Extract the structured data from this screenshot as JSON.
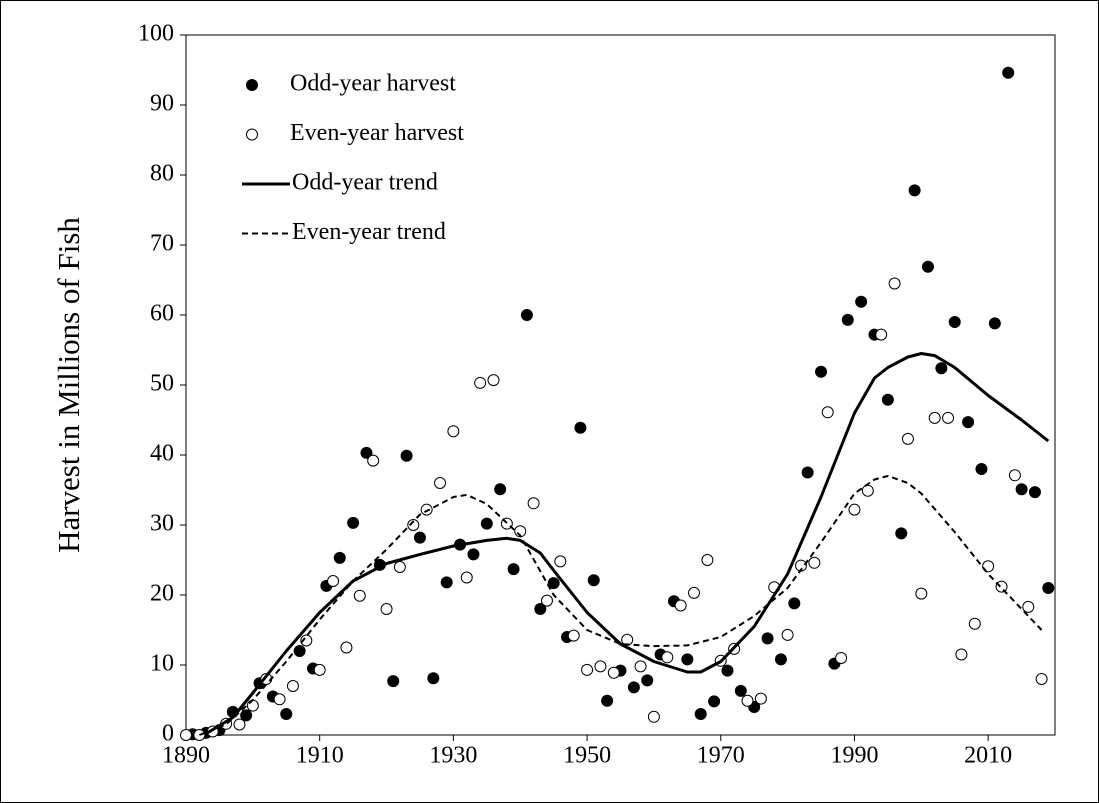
{
  "chart_data": {
    "type": "scatter",
    "y_label": "Harvest in Millions of Fish",
    "xlim": [
      1890,
      2020
    ],
    "xticks": [
      1890,
      1910,
      1930,
      1950,
      1970,
      1990,
      2010
    ],
    "ylim": [
      0,
      100
    ],
    "yticks": [
      0,
      10,
      20,
      30,
      40,
      50,
      60,
      70,
      80,
      90,
      100
    ],
    "legend": "upper left",
    "series": [
      {
        "name": "Odd-year harvest",
        "type": "scatter",
        "marker": "filled",
        "color": "#000000",
        "x": [
          1891,
          1893,
          1895,
          1897,
          1899,
          1901,
          1903,
          1905,
          1907,
          1909,
          1911,
          1913,
          1915,
          1917,
          1919,
          1921,
          1923,
          1925,
          1927,
          1929,
          1931,
          1933,
          1935,
          1937,
          1939,
          1941,
          1943,
          1945,
          1947,
          1949,
          1951,
          1953,
          1955,
          1957,
          1959,
          1961,
          1963,
          1965,
          1967,
          1969,
          1971,
          1973,
          1975,
          1977,
          1979,
          1981,
          1983,
          1985,
          1987,
          1989,
          1991,
          1993,
          1995,
          1997,
          1999,
          2001,
          2003,
          2005,
          2007,
          2009,
          2011,
          2013,
          2015,
          2017,
          2019
        ],
        "values": [
          0.1,
          0.3,
          0.7,
          3.3,
          2.8,
          7.4,
          5.5,
          3.0,
          12.0,
          9.5,
          21.3,
          25.3,
          30.3,
          40.3,
          24.3,
          7.7,
          39.9,
          28.2,
          8.1,
          21.8,
          27.2,
          25.8,
          30.2,
          35.1,
          23.7,
          60.0,
          18.0,
          21.7,
          14.0,
          43.9,
          22.1,
          4.9,
          9.2,
          6.8,
          7.8,
          11.5,
          19.1,
          10.8,
          3.0,
          4.8,
          9.2,
          6.3,
          4.0,
          13.8,
          10.8,
          18.8,
          37.5,
          51.9,
          10.2,
          59.3,
          61.9,
          57.2,
          47.9,
          28.8,
          77.8,
          66.9,
          52.4,
          59.0,
          44.7,
          38.0,
          58.8,
          94.6,
          35.1,
          34.7,
          21.0
        ]
      },
      {
        "name": "Even-year harvest",
        "type": "scatter",
        "marker": "open",
        "color": "#000000",
        "x": [
          1890,
          1892,
          1894,
          1896,
          1898,
          1900,
          1902,
          1904,
          1906,
          1908,
          1910,
          1912,
          1914,
          1916,
          1918,
          1920,
          1922,
          1924,
          1926,
          1928,
          1930,
          1932,
          1934,
          1936,
          1938,
          1940,
          1942,
          1944,
          1946,
          1948,
          1950,
          1952,
          1954,
          1956,
          1958,
          1960,
          1962,
          1964,
          1966,
          1968,
          1970,
          1972,
          1974,
          1976,
          1978,
          1980,
          1982,
          1984,
          1986,
          1988,
          1990,
          1992,
          1994,
          1996,
          1998,
          2000,
          2002,
          2004,
          2006,
          2008,
          2010,
          2012,
          2014,
          2016,
          2018
        ],
        "values": [
          0,
          0,
          0.5,
          1.6,
          1.5,
          4.2,
          8.0,
          5.1,
          7.0,
          13.5,
          9.3,
          22.0,
          12.5,
          19.9,
          39.2,
          18.0,
          24.0,
          30.0,
          32.2,
          36.0,
          43.4,
          22.5,
          50.3,
          50.7,
          30.2,
          29.1,
          33.1,
          19.2,
          24.8,
          14.2,
          9.3,
          9.8,
          8.9,
          13.6,
          9.8,
          2.6,
          11.1,
          18.5,
          20.3,
          25.0,
          10.6,
          12.3,
          4.9,
          5.2,
          21.1,
          14.3,
          24.2,
          24.6,
          46.1,
          11.0,
          32.2,
          34.9,
          57.2,
          64.5,
          42.3,
          20.2,
          45.3,
          45.3,
          11.5,
          15.9,
          24.1,
          21.2,
          37.1,
          18.3,
          8.0
        ]
      },
      {
        "name": "Odd-year trend",
        "type": "line",
        "dash": "solid",
        "color": "#000000",
        "x": [
          1893,
          1897,
          1900,
          1905,
          1910,
          1915,
          1920,
          1925,
          1930,
          1935,
          1938,
          1940,
          1943,
          1945,
          1950,
          1955,
          1960,
          1965,
          1967,
          1970,
          1975,
          1980,
          1985,
          1990,
          1993,
          1995,
          1998,
          2000,
          2002,
          2005,
          2010,
          2015,
          2019
        ],
        "values": [
          0.2,
          2.5,
          6,
          12,
          17.5,
          22,
          24.5,
          25.8,
          27,
          27.8,
          28.1,
          27.8,
          26,
          23.5,
          17.5,
          13,
          10.5,
          9,
          9,
          10.5,
          15.5,
          23,
          34,
          46,
          51,
          52.5,
          54,
          54.5,
          54.2,
          52.5,
          48.5,
          45,
          42
        ]
      },
      {
        "name": "Even-year trend",
        "type": "line",
        "dash": "dashed",
        "color": "#000000",
        "x": [
          1892,
          1896,
          1900,
          1905,
          1910,
          1915,
          1920,
          1925,
          1930,
          1932,
          1935,
          1940,
          1945,
          1950,
          1955,
          1960,
          1965,
          1970,
          1975,
          1980,
          1985,
          1990,
          1993,
          1995,
          1998,
          2000,
          2005,
          2010,
          2015,
          2018
        ],
        "values": [
          0,
          1.5,
          5,
          10.5,
          16.5,
          22,
          26.5,
          31.5,
          34,
          34.3,
          33,
          28.5,
          20,
          15,
          13,
          12.7,
          12.8,
          14,
          17,
          21,
          27.5,
          34.5,
          36.5,
          37,
          36,
          34.5,
          29,
          23,
          18,
          15
        ]
      }
    ]
  }
}
